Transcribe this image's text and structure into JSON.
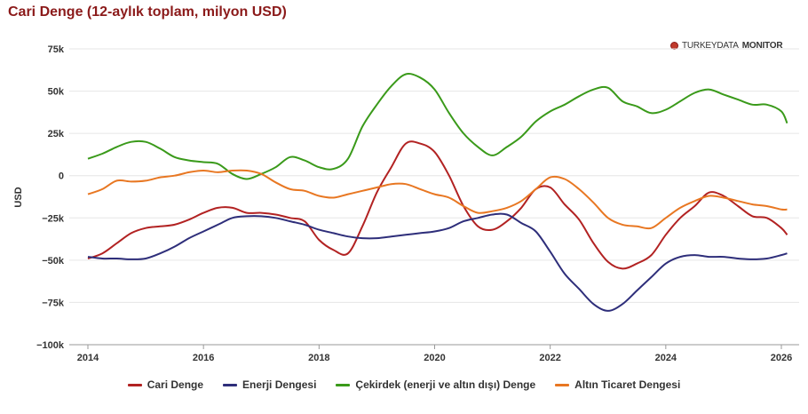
{
  "title": "Cari Denge (12-aylık toplam, milyon USD)",
  "brand": {
    "thin": "TURKEYDATA",
    "bold": "MONITOR"
  },
  "chart_data": {
    "type": "line",
    "title": "Cari Denge (12-aylık toplam, milyon USD)",
    "xlabel": "",
    "ylabel": "USD",
    "xlim": [
      2014,
      2026.25
    ],
    "ylim": [
      -100000,
      75000
    ],
    "x_ticks": [
      2014,
      2016,
      2018,
      2020,
      2022,
      2024,
      2026
    ],
    "y_ticks": [
      {
        "value": 75000,
        "label": "75k"
      },
      {
        "value": 50000,
        "label": "50k"
      },
      {
        "value": 25000,
        "label": "25k"
      },
      {
        "value": 0,
        "label": "0"
      },
      {
        "value": -25000,
        "label": "−25k"
      },
      {
        "value": -50000,
        "label": "−50k"
      },
      {
        "value": -75000,
        "label": "−75k"
      },
      {
        "value": -100000,
        "label": "−100k"
      }
    ],
    "grid": true,
    "legend_position": "bottom",
    "series": [
      {
        "name": "Cari Denge",
        "color": "#b22222",
        "x": [
          2014.0,
          2014.25,
          2014.5,
          2014.75,
          2015.0,
          2015.25,
          2015.5,
          2015.75,
          2016.0,
          2016.25,
          2016.5,
          2016.75,
          2017.0,
          2017.25,
          2017.5,
          2017.75,
          2018.0,
          2018.25,
          2018.5,
          2018.75,
          2019.0,
          2019.25,
          2019.5,
          2019.75,
          2020.0,
          2020.25,
          2020.5,
          2020.75,
          2021.0,
          2021.25,
          2021.5,
          2021.75,
          2022.0,
          2022.25,
          2022.5,
          2022.75,
          2023.0,
          2023.25,
          2023.5,
          2023.75,
          2024.0,
          2024.25,
          2024.5,
          2024.75,
          2025.0,
          2025.25,
          2025.5,
          2025.75,
          2026.0,
          2026.1
        ],
        "values": [
          -49000,
          -46000,
          -40000,
          -34000,
          -31000,
          -30000,
          -29000,
          -26000,
          -22000,
          -19000,
          -19000,
          -22000,
          -22000,
          -23000,
          -25000,
          -27000,
          -38000,
          -44000,
          -46000,
          -30000,
          -10000,
          5000,
          19000,
          19000,
          14000,
          0,
          -18000,
          -30000,
          -32000,
          -27000,
          -19000,
          -8000,
          -7000,
          -17000,
          -26000,
          -40000,
          -51000,
          -55000,
          -52000,
          -47000,
          -35000,
          -25000,
          -18000,
          -10000,
          -12000,
          -18000,
          -24000,
          -25000,
          -31000,
          -35000
        ]
      },
      {
        "name": "Enerji Dengesi",
        "color": "#2e2e7a",
        "x": [
          2014.0,
          2014.25,
          2014.5,
          2014.75,
          2015.0,
          2015.25,
          2015.5,
          2015.75,
          2016.0,
          2016.25,
          2016.5,
          2016.75,
          2017.0,
          2017.25,
          2017.5,
          2017.75,
          2018.0,
          2018.25,
          2018.5,
          2018.75,
          2019.0,
          2019.25,
          2019.5,
          2019.75,
          2020.0,
          2020.25,
          2020.5,
          2020.75,
          2021.0,
          2021.25,
          2021.5,
          2021.75,
          2022.0,
          2022.25,
          2022.5,
          2022.75,
          2023.0,
          2023.25,
          2023.5,
          2023.75,
          2024.0,
          2024.25,
          2024.5,
          2024.75,
          2025.0,
          2025.25,
          2025.5,
          2025.75,
          2026.0,
          2026.1
        ],
        "values": [
          -48000,
          -49000,
          -49000,
          -49500,
          -49000,
          -46000,
          -42000,
          -37000,
          -33000,
          -29000,
          -25000,
          -24000,
          -24000,
          -25000,
          -27000,
          -29000,
          -32000,
          -34000,
          -36000,
          -37000,
          -37000,
          -36000,
          -35000,
          -34000,
          -33000,
          -31000,
          -27000,
          -25000,
          -23000,
          -23000,
          -28000,
          -33000,
          -45000,
          -58000,
          -67000,
          -76000,
          -80000,
          -76000,
          -68000,
          -60000,
          -52000,
          -48000,
          -47000,
          -48000,
          -48000,
          -49000,
          -49500,
          -49000,
          -47000,
          -46000
        ]
      },
      {
        "name": "Çekirdek (enerji ve altın dışı) Denge",
        "color": "#3a9a1a",
        "x": [
          2014.0,
          2014.25,
          2014.5,
          2014.75,
          2015.0,
          2015.25,
          2015.5,
          2015.75,
          2016.0,
          2016.25,
          2016.5,
          2016.75,
          2017.0,
          2017.25,
          2017.5,
          2017.75,
          2018.0,
          2018.25,
          2018.5,
          2018.75,
          2019.0,
          2019.25,
          2019.5,
          2019.75,
          2020.0,
          2020.25,
          2020.5,
          2020.75,
          2021.0,
          2021.25,
          2021.5,
          2021.75,
          2022.0,
          2022.25,
          2022.5,
          2022.75,
          2023.0,
          2023.25,
          2023.5,
          2023.75,
          2024.0,
          2024.25,
          2024.5,
          2024.75,
          2025.0,
          2025.25,
          2025.5,
          2025.75,
          2026.0,
          2026.1
        ],
        "values": [
          10000,
          13000,
          17000,
          20000,
          20000,
          16000,
          11000,
          9000,
          8000,
          7000,
          1000,
          -2000,
          1000,
          5000,
          11000,
          9000,
          5000,
          4000,
          10000,
          29000,
          42000,
          53000,
          60000,
          58000,
          51000,
          37000,
          25000,
          17000,
          12000,
          17000,
          23000,
          32000,
          38000,
          42000,
          47000,
          51000,
          52000,
          44000,
          41000,
          37000,
          39000,
          44000,
          49000,
          51000,
          48000,
          45000,
          42000,
          42000,
          38000,
          31000
        ]
      },
      {
        "name": "Altın Ticaret Dengesi",
        "color": "#e87722",
        "x": [
          2014.0,
          2014.25,
          2014.5,
          2014.75,
          2015.0,
          2015.25,
          2015.5,
          2015.75,
          2016.0,
          2016.25,
          2016.5,
          2016.75,
          2017.0,
          2017.25,
          2017.5,
          2017.75,
          2018.0,
          2018.25,
          2018.5,
          2018.75,
          2019.0,
          2019.25,
          2019.5,
          2019.75,
          2020.0,
          2020.25,
          2020.5,
          2020.75,
          2021.0,
          2021.25,
          2021.5,
          2021.75,
          2022.0,
          2022.25,
          2022.5,
          2022.75,
          2023.0,
          2023.25,
          2023.5,
          2023.75,
          2024.0,
          2024.25,
          2024.5,
          2024.75,
          2025.0,
          2025.25,
          2025.5,
          2025.75,
          2026.0,
          2026.1
        ],
        "values": [
          -11000,
          -8000,
          -3000,
          -3500,
          -3000,
          -1000,
          0,
          2000,
          3000,
          2000,
          3000,
          3000,
          1000,
          -4000,
          -8000,
          -9000,
          -12000,
          -13000,
          -11000,
          -9000,
          -7000,
          -5000,
          -5000,
          -8000,
          -11000,
          -13000,
          -18000,
          -22000,
          -21000,
          -19000,
          -15000,
          -8000,
          -1000,
          -2000,
          -8000,
          -16000,
          -25000,
          -29000,
          -30000,
          -31000,
          -25000,
          -19000,
          -15000,
          -12000,
          -13000,
          -15000,
          -17000,
          -18000,
          -20000,
          -20000
        ]
      }
    ]
  }
}
